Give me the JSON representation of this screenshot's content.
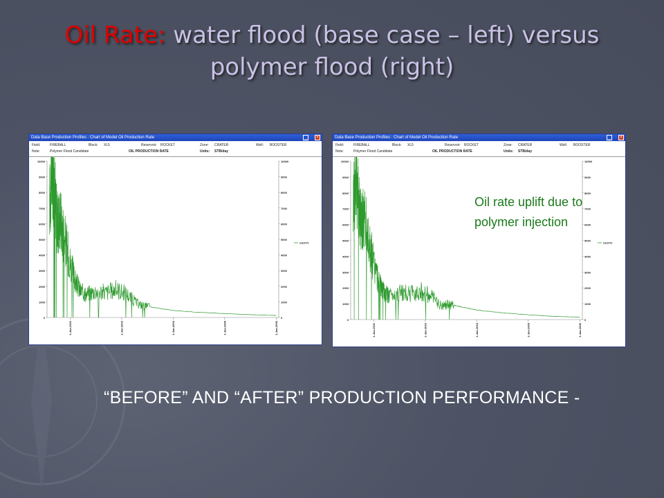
{
  "title": {
    "part1": "Oil Rate:",
    "part2": " water flood (base case – left) versus polymer flood (right)"
  },
  "footer": "“BEFORE” AND “AFTER” PRODUCTION PERFORMANCE  -",
  "annotation": "Oil rate uplift due to polymer injection",
  "colors": {
    "background": "#4f5566",
    "title_red": "#e00000",
    "title_lavender": "#c9c2e6",
    "series": "#2e9a2e",
    "annotation": "#1a7a1a"
  },
  "left_window": {
    "title": "Data Base Production Profiles : Chart of Model Oil Production Rate",
    "field_label": "Field:",
    "field": "FIREBALL",
    "block_label": "Block:",
    "block": "XL5",
    "reservoir_label": "Reservoir:",
    "reservoir": "ROCKET",
    "zone_label": "Zone:",
    "zone": "CRATER",
    "well_label": "Well:",
    "well": "BOOSTER",
    "note_label": "Note:",
    "note": "Polymer Flood Candidate",
    "chart_label": "OIL PRODUCTION RATE",
    "units_label": "Units:",
    "units": "STB/day",
    "legend": "MOPR"
  },
  "right_window": {
    "title": "Data Base Production Profiles : Chart of Model Oil Production Rate",
    "field_label": "Field:",
    "field": "FIREBALL",
    "block_label": "Block:",
    "block": "XL5",
    "reservoir_label": "Reservoir:",
    "reservoir": "ROCKET",
    "zone_label": "Zone:",
    "zone": "CRATER",
    "well_label": "Well:",
    "well": "BOOSTER",
    "note_label": "Note:",
    "note": "Polymer Flood Candidate",
    "chart_label": "OIL PRODUCTION RATE",
    "units_label": "Units:",
    "units": "STB/day",
    "legend": "MOPR"
  },
  "chart_data": [
    {
      "type": "line",
      "yticks": [
        0,
        1000,
        2000,
        3000,
        4000,
        5000,
        6000,
        7000,
        8000,
        9000,
        10000
      ],
      "ylim": [
        0,
        10000
      ],
      "xticks": [
        "1-Jan-2002",
        "1-Jan-2003",
        "1-Jan-2004",
        "1-Jan-2005",
        "1-Jan-2006"
      ],
      "legend": [
        "MOPR"
      ],
      "series": [
        {
          "name": "MOPR",
          "x": [
            2001.6,
            2001.65,
            2001.7,
            2001.75,
            2001.8,
            2001.9,
            2002.0,
            2002.1,
            2002.2,
            2002.3,
            2002.5,
            2002.7,
            2002.9,
            2003.1,
            2003.3,
            2003.5,
            2004.0,
            2004.5,
            2005.0,
            2005.5,
            2006.0
          ],
          "y": [
            7500,
            9500,
            7800,
            6000,
            6500,
            5000,
            3500,
            2300,
            1700,
            1500,
            1700,
            1600,
            1800,
            1500,
            900,
            700,
            450,
            330,
            250,
            180,
            130
          ]
        }
      ]
    },
    {
      "type": "line",
      "yticks": [
        0,
        1000,
        2000,
        3000,
        4000,
        5000,
        6000,
        7000,
        8000,
        9000,
        10000
      ],
      "ylim": [
        0,
        10000
      ],
      "xticks": [
        "1-Jan-2002",
        "1-Jan-2003",
        "1-Jan-2004",
        "1-Jan-2005",
        "1-Jan-2006"
      ],
      "legend": [
        "MOPR"
      ],
      "series": [
        {
          "name": "MOPR",
          "x": [
            2001.6,
            2001.65,
            2001.7,
            2001.75,
            2001.8,
            2001.9,
            2002.0,
            2002.1,
            2002.2,
            2002.3,
            2002.5,
            2002.7,
            2002.9,
            2003.1,
            2003.3,
            2003.5,
            2003.7,
            2004.0,
            2004.5,
            2005.0,
            2005.5,
            2006.0
          ],
          "y": [
            7500,
            9500,
            7800,
            6000,
            6500,
            5000,
            3500,
            2300,
            1700,
            1500,
            1700,
            1600,
            1800,
            1500,
            900,
            950,
            800,
            600,
            420,
            300,
            200,
            150
          ]
        }
      ]
    }
  ]
}
